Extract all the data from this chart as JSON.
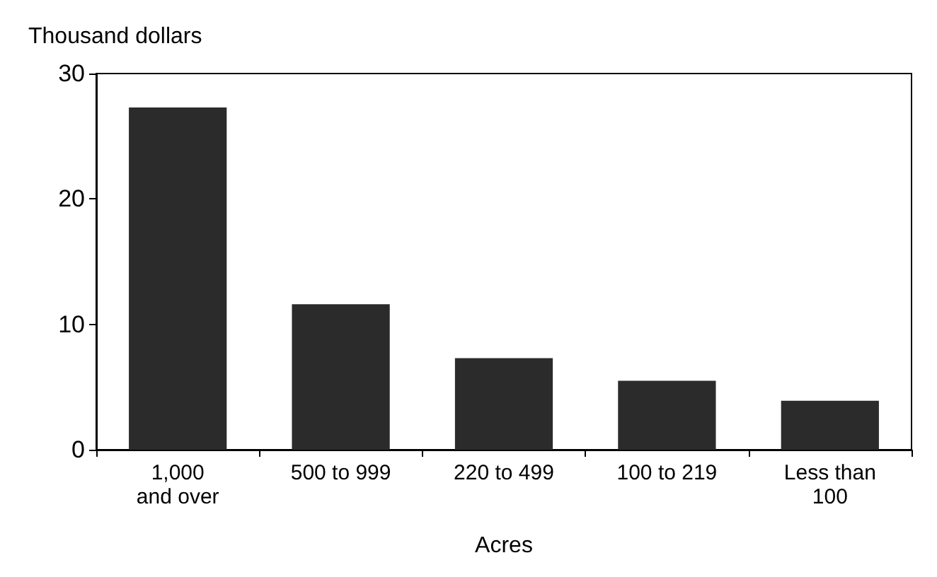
{
  "chart_data": {
    "type": "bar",
    "ylabel": "Thousand dollars",
    "xlabel": "Acres",
    "categories": [
      "1,000\nand over",
      "500 to 999",
      "220 to 499",
      "100 to 219",
      "Less than\n100"
    ],
    "values": [
      27.3,
      11.6,
      7.3,
      5.5,
      3.9
    ],
    "color": "#2b2b2b",
    "ylim": [
      0,
      30
    ],
    "yticks": [
      0,
      10,
      20,
      30
    ],
    "grid": false
  }
}
